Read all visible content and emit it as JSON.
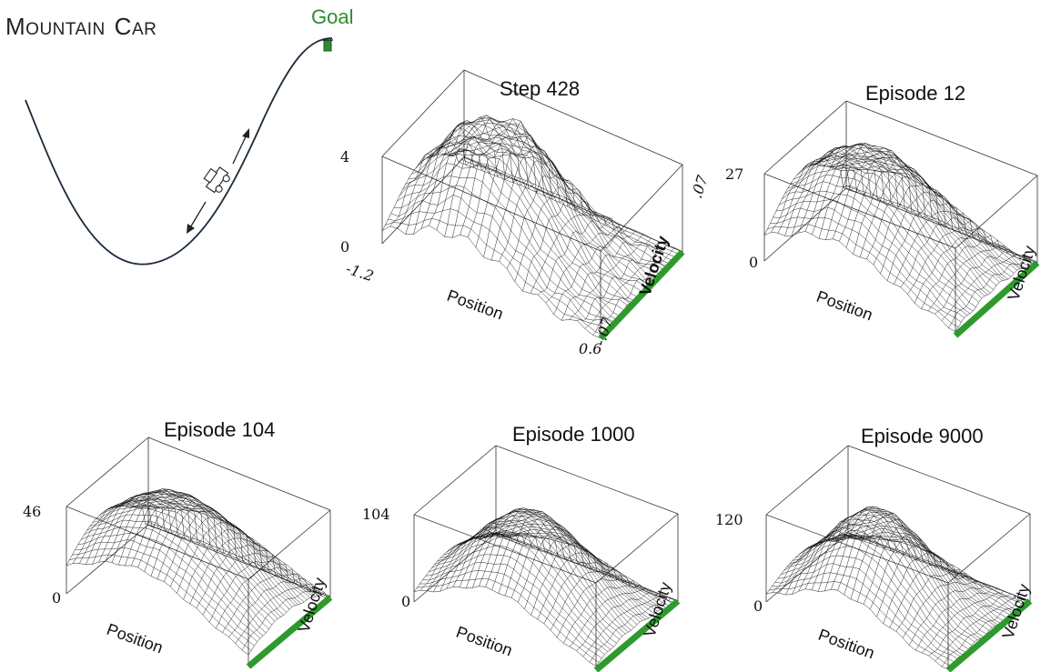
{
  "header": {
    "title_m": "M",
    "title_ountain": "OUNTAIN",
    "title_c": "C",
    "title_ar": "AR",
    "goal": "Goal"
  },
  "colors": {
    "goal": "#2e8b2e",
    "surface_line": "#111111",
    "velocity_bar": "#2e9a2e"
  },
  "panels": [
    {
      "title": "Step 428",
      "zmax": "4",
      "zmin": "0",
      "pos_min": "-1.2",
      "pos_max": "0.6",
      "vel_min": "-.07",
      "vel_max": ".07",
      "xlabel": "Position",
      "ylabel": "Velocity"
    },
    {
      "title": "Episode 12",
      "zmax": "27",
      "zmin": "0",
      "xlabel": "Position",
      "ylabel": "Velocity"
    },
    {
      "title": "Episode 104",
      "zmax": "46",
      "zmin": "0",
      "xlabel": "Position",
      "ylabel": "Velocity"
    },
    {
      "title": "Episode 1000",
      "zmax": "104",
      "zmin": "0",
      "xlabel": "Position",
      "ylabel": "Velocity"
    },
    {
      "title": "Episode 9000",
      "zmax": "120",
      "zmin": "0",
      "xlabel": "Position",
      "ylabel": "Velocity"
    }
  ]
}
